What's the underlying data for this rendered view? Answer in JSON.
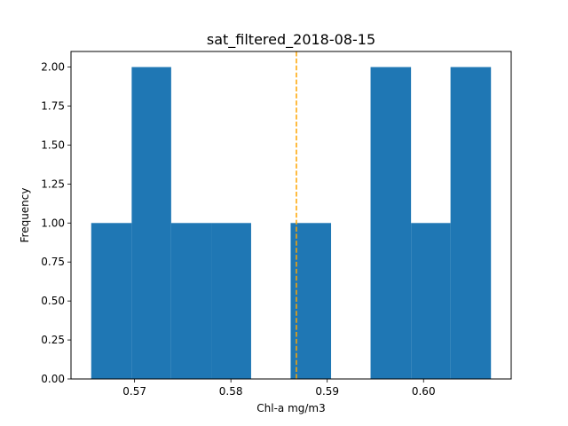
{
  "chart_data": {
    "type": "bar",
    "title": "sat_filtered_2018-08-15",
    "xlabel": "Chl-a mg/m3",
    "ylabel": "Frequency",
    "bin_edges": [
      0.5655,
      0.5697,
      0.5738,
      0.578,
      0.5821,
      0.5862,
      0.5904,
      0.5945,
      0.5987,
      0.6028,
      0.607
    ],
    "values": [
      1,
      2,
      1,
      1,
      0,
      1,
      0,
      2,
      1,
      2
    ],
    "xlim": [
      0.5634,
      0.6091
    ],
    "ylim": [
      0,
      2.1
    ],
    "xticks": [
      0.57,
      0.58,
      0.59,
      0.6
    ],
    "xtick_labels": [
      "0.57",
      "0.58",
      "0.59",
      "0.60"
    ],
    "yticks": [
      0,
      0.25,
      0.5,
      0.75,
      1.0,
      1.25,
      1.5,
      1.75,
      2.0
    ],
    "ytick_labels": [
      "0.00",
      "0.25",
      "0.50",
      "0.75",
      "1.00",
      "1.25",
      "1.50",
      "1.75",
      "2.00"
    ],
    "vline": 0.5868,
    "colors": {
      "bar": "#1f77b4",
      "vline": "#ffa500",
      "axes": "#000000"
    },
    "grid": false,
    "legend": "none"
  }
}
